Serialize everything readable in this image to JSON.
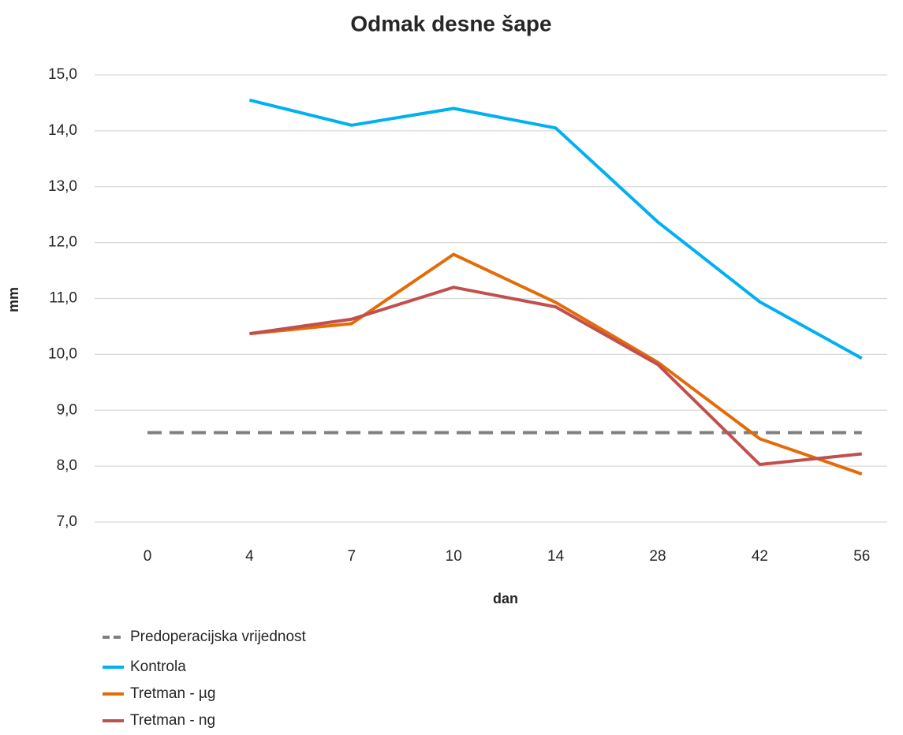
{
  "chart_data": {
    "type": "line",
    "title": "Odmak desne šape",
    "x_label": "dan",
    "y_label": "mm",
    "categories": [
      "0",
      "4",
      "7",
      "10",
      "14",
      "28",
      "42",
      "56"
    ],
    "series": [
      {
        "name": "Predoperacijska vrijednost",
        "color": "#7f7f7f",
        "linestyle": "dashed",
        "values": [
          8.6,
          8.6,
          8.6,
          8.6,
          8.6,
          8.6,
          8.6,
          8.6
        ]
      },
      {
        "name": "Kontrola",
        "color": "#00b0f0",
        "linestyle": "solid",
        "values": [
          null,
          14.55,
          14.1,
          14.4,
          14.05,
          12.37,
          10.94,
          9.93
        ]
      },
      {
        "name": "Tretman - µg",
        "color": "#e36c09",
        "linestyle": "solid",
        "values": [
          null,
          10.37,
          10.55,
          11.79,
          10.93,
          9.86,
          8.49,
          7.86
        ]
      },
      {
        "name": "Tretman - ng",
        "color": "#c0504d",
        "linestyle": "solid",
        "values": [
          null,
          10.37,
          10.63,
          11.2,
          10.85,
          9.82,
          8.03,
          8.22
        ]
      }
    ],
    "ylim": [
      7,
      15
    ],
    "yticks": [
      {
        "value": 7,
        "label": "7,0"
      },
      {
        "value": 8,
        "label": "8,0"
      },
      {
        "value": 9,
        "label": "9,0"
      },
      {
        "value": 10,
        "label": "10,0"
      },
      {
        "value": 11,
        "label": "11,0"
      },
      {
        "value": 12,
        "label": "12,0"
      },
      {
        "value": 13,
        "label": "13,0"
      },
      {
        "value": 14,
        "label": "14,0"
      },
      {
        "value": 15,
        "label": "15,0"
      }
    ],
    "grid": true,
    "legend": "bottom-left"
  }
}
